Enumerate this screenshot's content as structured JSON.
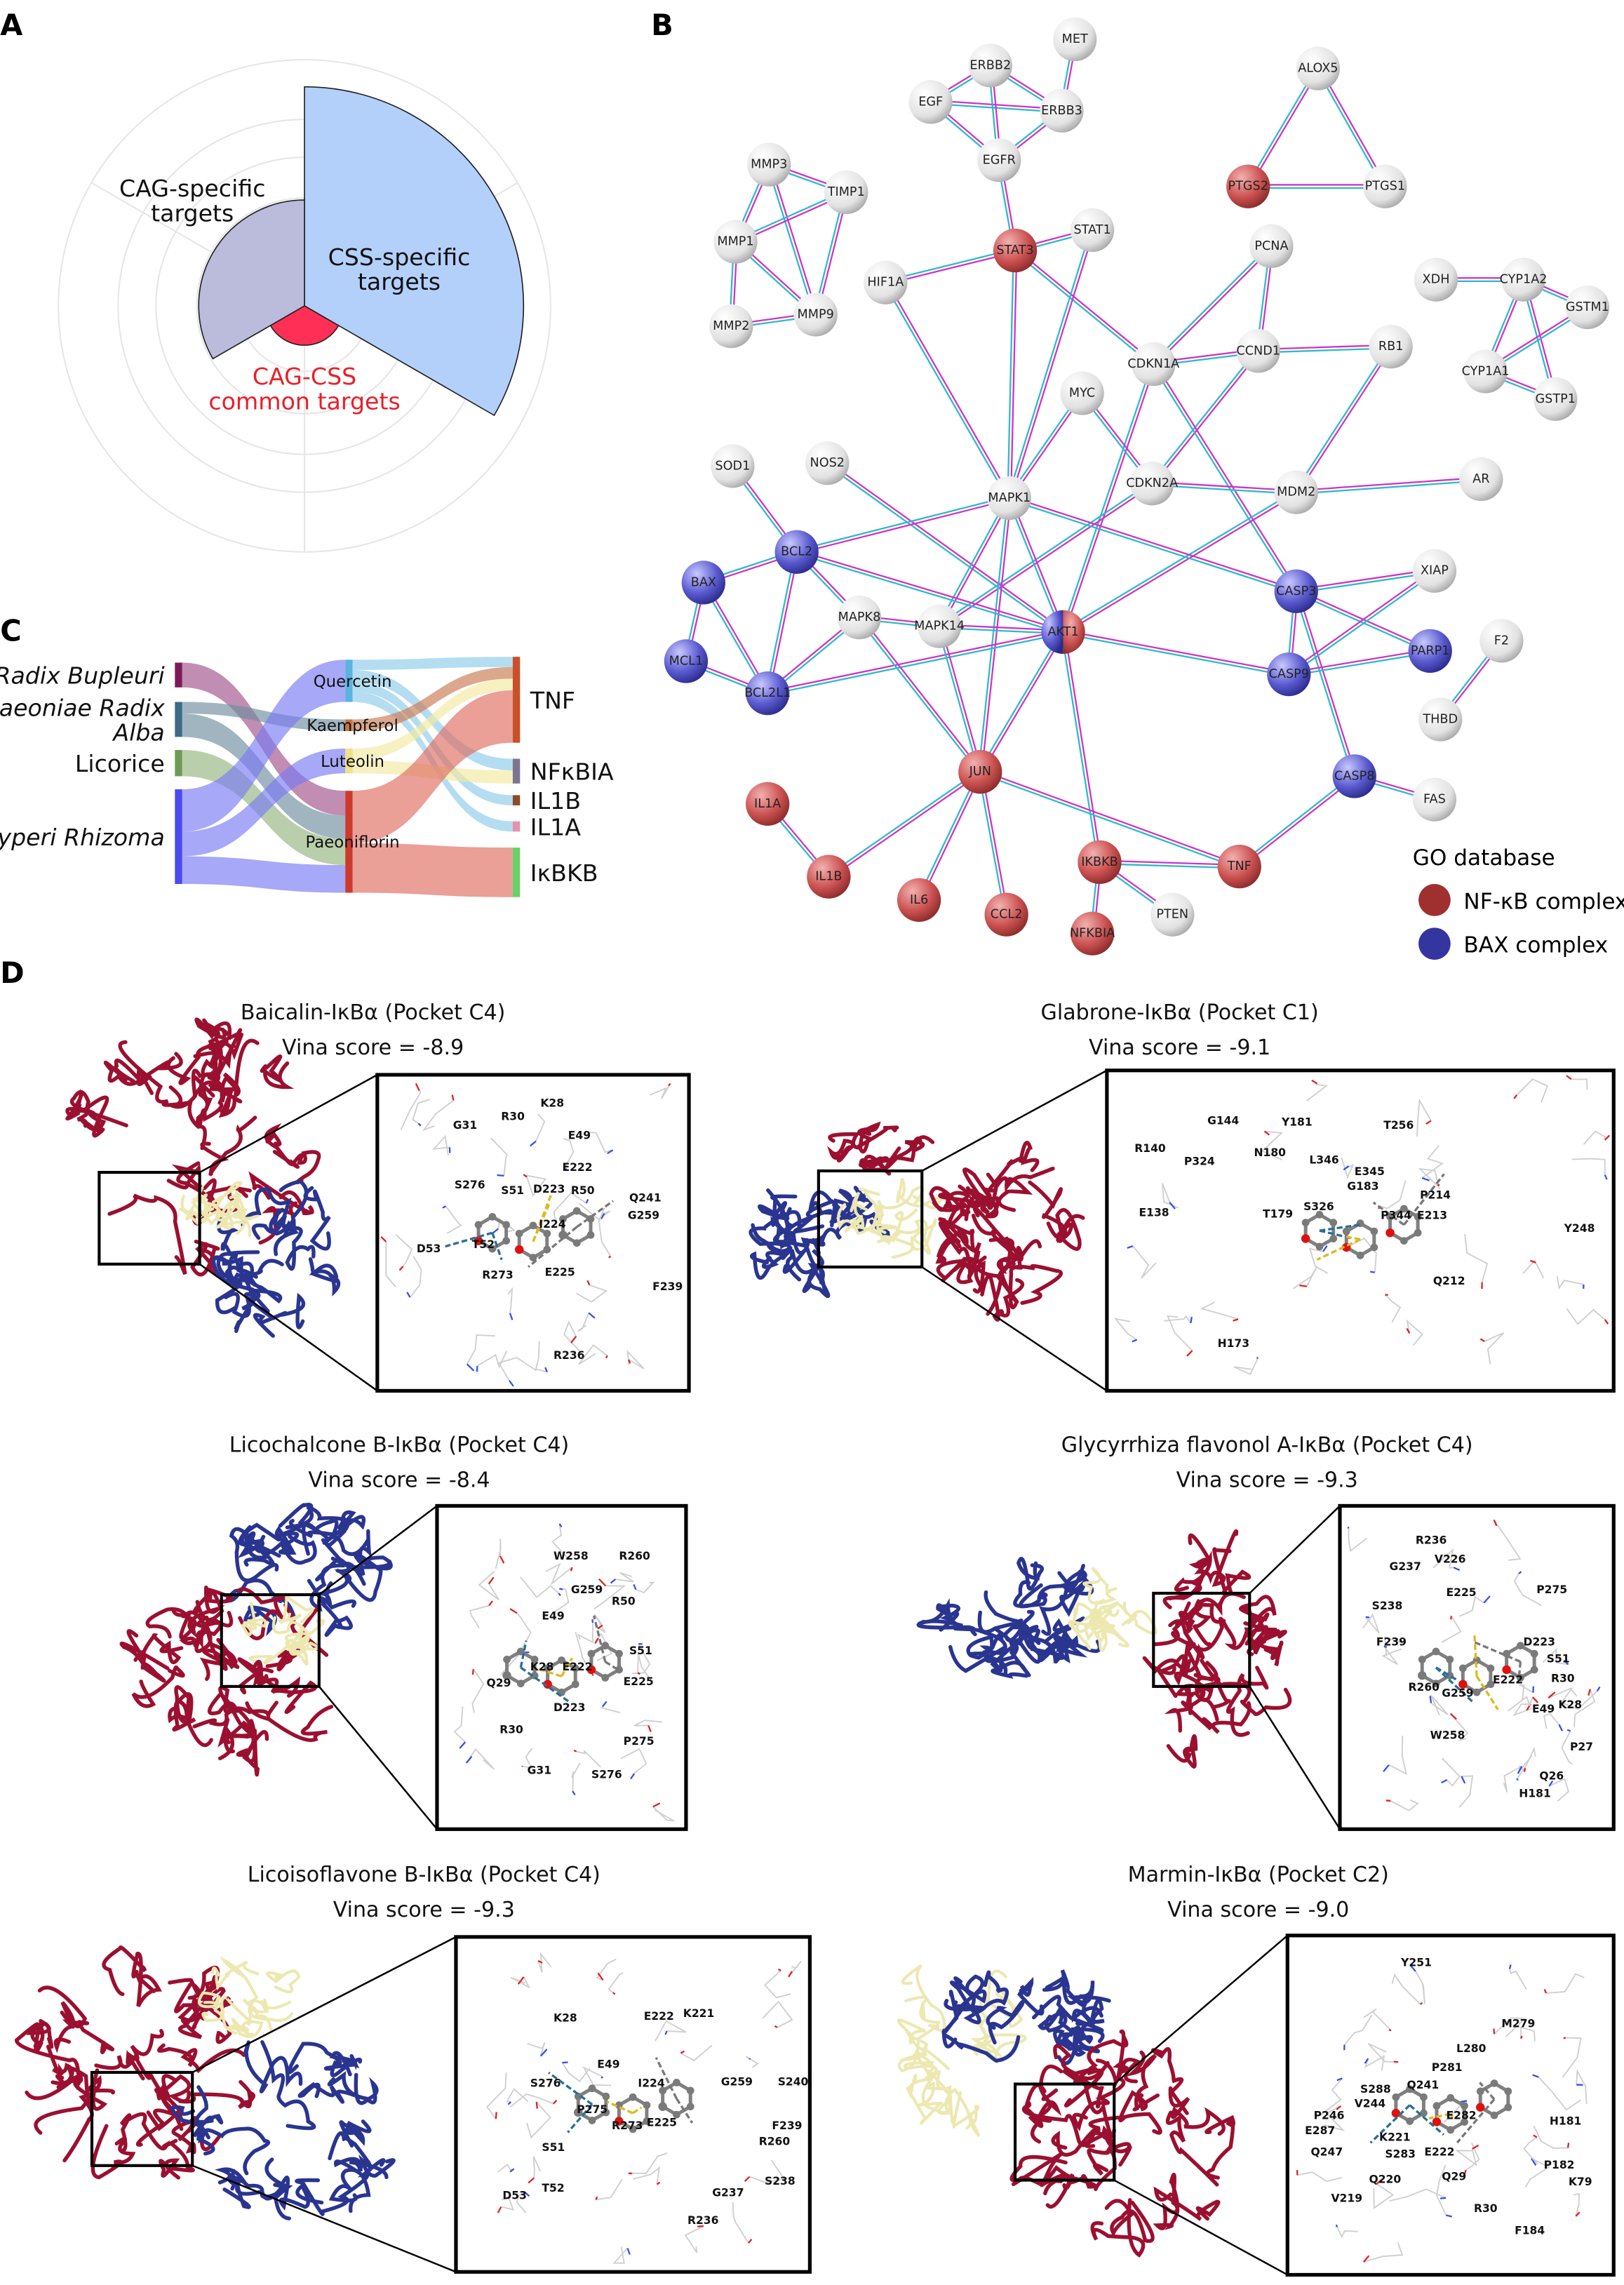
{
  "panel_labels": {
    "a": "A",
    "b": "B",
    "c": "C",
    "d": "D"
  },
  "chart_data": [
    {
      "panel": "A",
      "type": "polar-bar",
      "categories": [
        "CSS-specific targets",
        "CAG-CSS common targets",
        "CAG-specific targets"
      ],
      "label_lines": [
        [
          "CSS-specific",
          "targets"
        ],
        [
          "CAG-CSS",
          "common targets"
        ],
        [
          "CAG-specific",
          "targets"
        ]
      ],
      "values": [
        0.89,
        0.16,
        0.43
      ],
      "colors": [
        "#b3d0fb",
        "#ff2f55",
        "#bbbbdb"
      ],
      "label_colors": [
        "#111111",
        "#e8202a",
        "#111111"
      ],
      "grid": true
    },
    {
      "panel": "C",
      "type": "sankey",
      "columns": [
        [
          {
            "id": "Radix Bupleuri",
            "lines": [
              "Radix Bupleuri"
            ],
            "italic": true,
            "color": "#7b1a5a",
            "flow_color": "#a0508a"
          },
          {
            "id": "Paeoniae Radix Alba",
            "lines": [
              "Paeoniae Radix",
              "Alba"
            ],
            "italic": true,
            "color": "#3d6a85",
            "flow_color": "#6f8ea0"
          },
          {
            "id": "Licorice",
            "lines": [
              "Licorice"
            ],
            "italic": false,
            "color": "#6f9a55",
            "flow_color": "#93b47c"
          },
          {
            "id": "Cyperi Rhizoma",
            "lines": [
              "Cyperi Rhizoma"
            ],
            "italic": true,
            "color": "#4a4af0",
            "flow_color": "#7a7af5"
          }
        ],
        [
          {
            "id": "Quercetin",
            "lines": [
              "Quercetin"
            ],
            "color": "#5ab4e0",
            "flow_color": "#8ccbea"
          },
          {
            "id": "Kaempferol",
            "lines": [
              "Kaempferol"
            ],
            "color": "#c8743a",
            "flow_color": "#c87a50"
          },
          {
            "id": "Luteolin",
            "lines": [
              "Luteolin"
            ],
            "color": "#efe08a",
            "flow_color": "#f3e9a0"
          },
          {
            "id": "Paeoniflorin",
            "lines": [
              "Paeoniflorin"
            ],
            "color": "#cc3a2e",
            "flow_color": "#de6b60"
          }
        ],
        [
          {
            "id": "TNF",
            "lines": [
              "TNF"
            ],
            "color": "#c8502a"
          },
          {
            "id": "NFκBIA",
            "lines": [
              "NFκBIA"
            ],
            "color": "#7d7590"
          },
          {
            "id": "IL1B",
            "lines": [
              "IL1B"
            ],
            "color": "#8b4a2a"
          },
          {
            "id": "IL1A",
            "lines": [
              "IL1A"
            ],
            "color": "#e393ab"
          },
          {
            "id": "IκBKB",
            "lines": [
              "IκBKB"
            ],
            "color": "#6ad06a"
          }
        ]
      ],
      "flows": [
        [
          "Radix Bupleuri",
          "Paeoniflorin",
          17
        ],
        [
          "Paeoniae Radix Alba",
          "Kaempferol",
          8
        ],
        [
          "Paeoniae Radix Alba",
          "Paeoniflorin",
          16
        ],
        [
          "Licorice",
          "Paeoniflorin",
          18
        ],
        [
          "Cyperi Rhizoma",
          "Quercetin",
          29
        ],
        [
          "Cyperi Rhizoma",
          "Luteolin",
          17
        ],
        [
          "Cyperi Rhizoma",
          "Paeoniflorin",
          19
        ],
        [
          "Quercetin",
          "TNF",
          7
        ],
        [
          "Quercetin",
          "NFκBIA",
          8
        ],
        [
          "Quercetin",
          "IL1B",
          7
        ],
        [
          "Quercetin",
          "IL1A",
          7
        ],
        [
          "Kaempferol",
          "TNF",
          8
        ],
        [
          "Luteolin",
          "TNF",
          8
        ],
        [
          "Luteolin",
          "NFκBIA",
          9
        ],
        [
          "Paeoniflorin",
          "TNF",
          36
        ],
        [
          "Paeoniflorin",
          "IκBKB",
          34
        ]
      ]
    }
  ],
  "network": {
    "group_colors": {
      "none": "#e6e6e6",
      "nfkb": "#c84a4a",
      "bax": "#5252c4"
    },
    "edge_colors": [
      "#2fb8cc",
      "#cc33cc"
    ],
    "nodes": [
      {
        "id": "MET",
        "group": "none"
      },
      {
        "id": "ERBB2",
        "group": "none"
      },
      {
        "id": "EGF",
        "group": "none"
      },
      {
        "id": "ERBB3",
        "group": "none"
      },
      {
        "id": "EGFR",
        "group": "none"
      },
      {
        "id": "ALOX5",
        "group": "none"
      },
      {
        "id": "PTGS2",
        "group": "nfkb"
      },
      {
        "id": "PTGS1",
        "group": "none"
      },
      {
        "id": "MMP3",
        "group": "none"
      },
      {
        "id": "TIMP1",
        "group": "none"
      },
      {
        "id": "MMP1",
        "group": "none"
      },
      {
        "id": "MMP2",
        "group": "none"
      },
      {
        "id": "MMP9",
        "group": "none"
      },
      {
        "id": "STAT3",
        "group": "nfkb"
      },
      {
        "id": "STAT1",
        "group": "none"
      },
      {
        "id": "HIF1A",
        "group": "none"
      },
      {
        "id": "PCNA",
        "group": "none"
      },
      {
        "id": "XDH",
        "group": "none"
      },
      {
        "id": "CYP1A2",
        "group": "none"
      },
      {
        "id": "GSTM1",
        "group": "none"
      },
      {
        "id": "CYP1A1",
        "group": "none"
      },
      {
        "id": "GSTP1",
        "group": "none"
      },
      {
        "id": "CDKN1A",
        "group": "none"
      },
      {
        "id": "CCND1",
        "group": "none"
      },
      {
        "id": "RB1",
        "group": "none"
      },
      {
        "id": "MYC",
        "group": "none"
      },
      {
        "id": "SOD1",
        "group": "none"
      },
      {
        "id": "NOS2",
        "group": "none"
      },
      {
        "id": "MAPK1",
        "group": "none"
      },
      {
        "id": "CDKN2A",
        "group": "none"
      },
      {
        "id": "MDM2",
        "group": "none"
      },
      {
        "id": "AR",
        "group": "none"
      },
      {
        "id": "BCL2",
        "group": "bax"
      },
      {
        "id": "BAX",
        "group": "bax"
      },
      {
        "id": "XIAP",
        "group": "none"
      },
      {
        "id": "CASP3",
        "group": "bax"
      },
      {
        "id": "MAPK8",
        "group": "none"
      },
      {
        "id": "MAPK14",
        "group": "none"
      },
      {
        "id": "AKT1",
        "group": "both"
      },
      {
        "id": "MCL1",
        "group": "bax"
      },
      {
        "id": "BCL2L1",
        "group": "bax"
      },
      {
        "id": "CASP9",
        "group": "bax"
      },
      {
        "id": "PARP1",
        "group": "bax"
      },
      {
        "id": "F2",
        "group": "none"
      },
      {
        "id": "THBD",
        "group": "none"
      },
      {
        "id": "JUN",
        "group": "nfkb"
      },
      {
        "id": "CASP8",
        "group": "bax"
      },
      {
        "id": "FAS",
        "group": "none"
      },
      {
        "id": "IL1A",
        "group": "nfkb"
      },
      {
        "id": "IL1B",
        "group": "nfkb"
      },
      {
        "id": "IL6",
        "group": "nfkb"
      },
      {
        "id": "CCL2",
        "group": "nfkb"
      },
      {
        "id": "IKBKB",
        "group": "nfkb"
      },
      {
        "id": "NFKBIA",
        "group": "nfkb"
      },
      {
        "id": "PTEN",
        "group": "none"
      },
      {
        "id": "TNF",
        "group": "nfkb"
      }
    ],
    "edges": [
      [
        "EGF",
        "ERBB2"
      ],
      [
        "EGF",
        "ERBB3"
      ],
      [
        "EGF",
        "EGFR"
      ],
      [
        "ERBB2",
        "ERBB3"
      ],
      [
        "ERBB2",
        "EGFR"
      ],
      [
        "MET",
        "ERBB3"
      ],
      [
        "ERBB3",
        "EGFR"
      ],
      [
        "EGFR",
        "STAT3"
      ],
      [
        "ALOX5",
        "PTGS2"
      ],
      [
        "ALOX5",
        "PTGS1"
      ],
      [
        "PTGS2",
        "PTGS1"
      ],
      [
        "MMP3",
        "TIMP1"
      ],
      [
        "MMP3",
        "MMP1"
      ],
      [
        "MMP3",
        "MMP9"
      ],
      [
        "TIMP1",
        "MMP1"
      ],
      [
        "TIMP1",
        "MMP9"
      ],
      [
        "MMP1",
        "MMP2"
      ],
      [
        "MMP1",
        "MMP9"
      ],
      [
        "MMP2",
        "MMP9"
      ],
      [
        "STAT3",
        "STAT1"
      ],
      [
        "STAT3",
        "HIF1A"
      ],
      [
        "STAT3",
        "MAPK1"
      ],
      [
        "STAT3",
        "CDKN1A"
      ],
      [
        "STAT1",
        "MAPK1"
      ],
      [
        "HIF1A",
        "MAPK1"
      ],
      [
        "PCNA",
        "CDKN1A"
      ],
      [
        "PCNA",
        "CCND1"
      ],
      [
        "CDKN1A",
        "CCND1"
      ],
      [
        "CCND1",
        "RB1"
      ],
      [
        "CCND1",
        "CDKN2A"
      ],
      [
        "CDKN1A",
        "AKT1"
      ],
      [
        "CDKN1A",
        "CASP3"
      ],
      [
        "RB1",
        "MDM2"
      ],
      [
        "MYC",
        "MAPK1"
      ],
      [
        "MYC",
        "CDKN2A"
      ],
      [
        "XDH",
        "CYP1A2"
      ],
      [
        "CYP1A2",
        "GSTM1"
      ],
      [
        "CYP1A2",
        "CYP1A1"
      ],
      [
        "CYP1A2",
        "GSTP1"
      ],
      [
        "CYP1A1",
        "GSTM1"
      ],
      [
        "CYP1A1",
        "GSTP1"
      ],
      [
        "CDKN2A",
        "MDM2"
      ],
      [
        "CDKN2A",
        "MAPK14"
      ],
      [
        "MDM2",
        "AR"
      ],
      [
        "MDM2",
        "AKT1"
      ],
      [
        "SOD1",
        "BCL2"
      ],
      [
        "NOS2",
        "AKT1"
      ],
      [
        "MAPK1",
        "BCL2"
      ],
      [
        "MAPK1",
        "CASP3"
      ],
      [
        "MAPK1",
        "MAPK14"
      ],
      [
        "MAPK1",
        "AKT1"
      ],
      [
        "MAPK1",
        "JUN"
      ],
      [
        "BCL2",
        "BAX"
      ],
      [
        "BCL2",
        "BCL2L1"
      ],
      [
        "BCL2",
        "MAPK8"
      ],
      [
        "BCL2",
        "AKT1"
      ],
      [
        "BAX",
        "MCL1"
      ],
      [
        "BAX",
        "BCL2L1"
      ],
      [
        "MCL1",
        "BCL2L1"
      ],
      [
        "BCL2L1",
        "MAPK8"
      ],
      [
        "BCL2L1",
        "AKT1"
      ],
      [
        "MAPK8",
        "MAPK14"
      ],
      [
        "MAPK8",
        "JUN"
      ],
      [
        "MAPK14",
        "AKT1"
      ],
      [
        "MAPK14",
        "JUN"
      ],
      [
        "AKT1",
        "JUN"
      ],
      [
        "AKT1",
        "CASP9"
      ],
      [
        "AKT1",
        "IKBKB"
      ],
      [
        "CASP3",
        "XIAP"
      ],
      [
        "CASP3",
        "PARP1"
      ],
      [
        "CASP3",
        "CASP9"
      ],
      [
        "CASP3",
        "CASP8"
      ],
      [
        "CASP9",
        "XIAP"
      ],
      [
        "CASP9",
        "PARP1"
      ],
      [
        "F2",
        "THBD"
      ],
      [
        "CASP8",
        "FAS"
      ],
      [
        "CASP8",
        "TNF"
      ],
      [
        "JUN",
        "IL1B"
      ],
      [
        "JUN",
        "IL6"
      ],
      [
        "JUN",
        "CCL2"
      ],
      [
        "JUN",
        "TNF"
      ],
      [
        "IL1A",
        "IL1B"
      ],
      [
        "IKBKB",
        "TNF"
      ],
      [
        "IKBKB",
        "NFKBIA"
      ],
      [
        "IKBKB",
        "PTEN"
      ]
    ],
    "legend": {
      "title": "GO database",
      "items": [
        {
          "label": "NF-κB complex",
          "color": "#a03030"
        },
        {
          "label": "BAX complex",
          "color": "#3535a0"
        }
      ]
    }
  },
  "docking": [
    {
      "title": "Baicalin-IκBα (Pocket C4)",
      "score": "Vina score = -8.9",
      "residues": [
        "K28",
        "R30",
        "G31",
        "E49",
        "E222",
        "S276",
        "S51",
        "D223",
        "R50",
        "Q241",
        "G259",
        "I224",
        "T52",
        "D53",
        "R273",
        "E225",
        "F239",
        "R236"
      ]
    },
    {
      "title": "Glabrone-IκBα (Pocket C1)",
      "score": "Vina score = -9.1",
      "residues": [
        "G144",
        "Y181",
        "T256",
        "R140",
        "P324",
        "N180",
        "L346",
        "E345",
        "G183",
        "P214",
        "T179",
        "S326",
        "E138",
        "P344",
        "E213",
        "Y248",
        "Q212",
        "H173"
      ]
    },
    {
      "title": "Licochalcone B-IκBα (Pocket C4)",
      "score": "Vina score = -8.4",
      "residues": [
        "W258",
        "R260",
        "G259",
        "R50",
        "E49",
        "S51",
        "K28",
        "E222",
        "Q29",
        "E225",
        "D223",
        "R30",
        "P275",
        "G31",
        "S276"
      ]
    },
    {
      "title": "Glycyrrhiza flavonol A-IκBα (Pocket C4)",
      "score": "Vina score = -9.3",
      "residues": [
        "R236",
        "V226",
        "G237",
        "E225",
        "P275",
        "S238",
        "F239",
        "D223",
        "S51",
        "E222",
        "R30",
        "R260",
        "G259",
        "K28",
        "E49",
        "P27",
        "W258",
        "Q26",
        "H181"
      ]
    },
    {
      "title": "Licoisoflavone B-IκBα (Pocket C4)",
      "score": "Vina score = -9.3",
      "residues": [
        "K28",
        "E222",
        "K221",
        "E49",
        "S276",
        "I224",
        "G259",
        "S240",
        "P275",
        "R273",
        "E225",
        "F239",
        "R260",
        "S51",
        "T52",
        "S238",
        "D53",
        "G237",
        "R236"
      ]
    },
    {
      "title": "Marmin-IκBα (Pocket C2)",
      "score": "Vina score = -9.0",
      "residues": [
        "Y251",
        "M279",
        "L280",
        "P281",
        "Q241",
        "S288",
        "V244",
        "E282",
        "P246",
        "E287",
        "H181",
        "K221",
        "S283",
        "E222",
        "Q247",
        "P182",
        "Q29",
        "K79",
        "Q220",
        "V219",
        "R30",
        "F184"
      ]
    }
  ]
}
